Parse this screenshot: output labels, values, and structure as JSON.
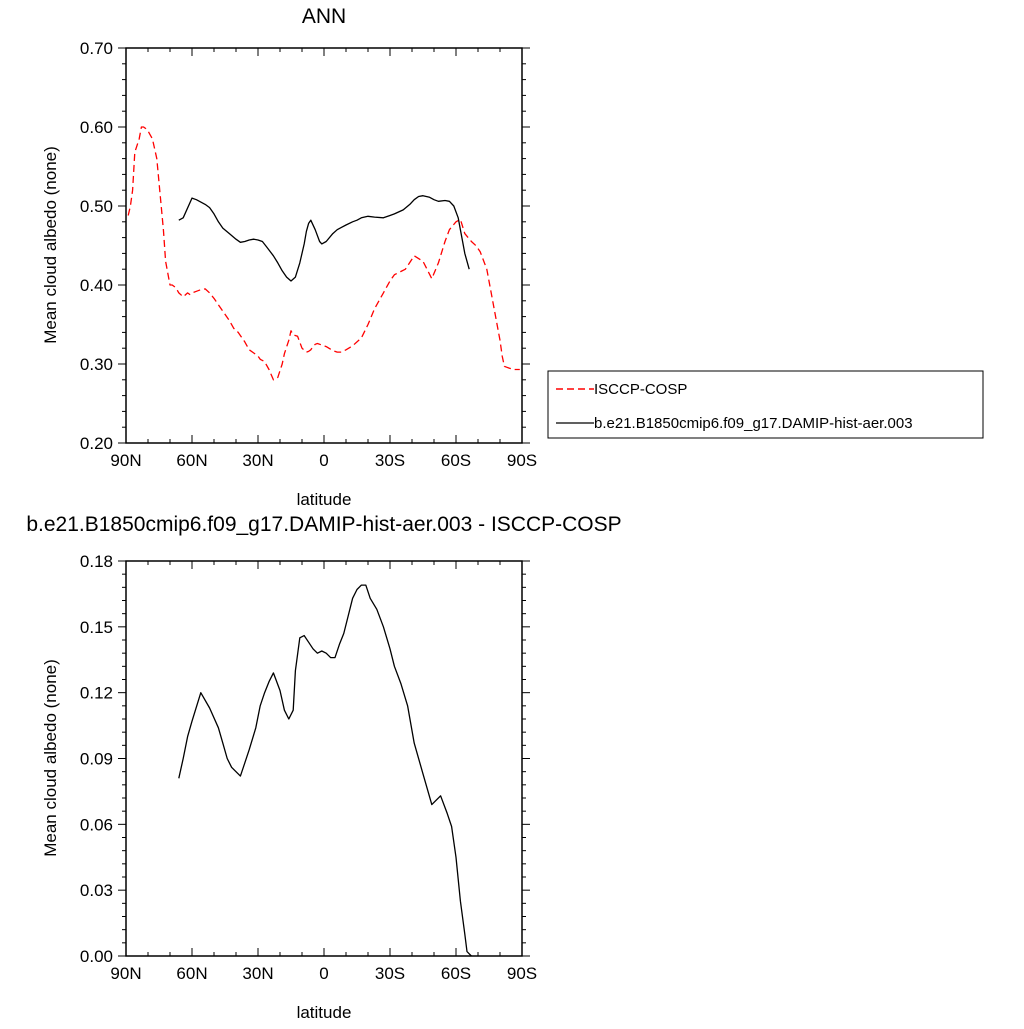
{
  "chart_data": [
    {
      "type": "line",
      "title": "ANN",
      "xlabel": "latitude",
      "ylabel": "Mean cloud albedo (none)",
      "xlim": [
        90,
        -90
      ],
      "ylim": [
        0.2,
        0.7
      ],
      "x_ticks": [
        90,
        60,
        30,
        0,
        -30,
        -60,
        -90
      ],
      "x_tick_labels": [
        "90N",
        "60N",
        "30N",
        "0",
        "30S",
        "60S",
        "90S"
      ],
      "y_ticks": [
        0.2,
        0.3,
        0.4,
        0.5,
        0.6,
        0.7
      ],
      "y_tick_labels": [
        "0.20",
        "0.30",
        "0.40",
        "0.50",
        "0.60",
        "0.70"
      ],
      "legend_position": "right",
      "series": [
        {
          "name": "ISCCP-COSP",
          "color": "#ff0000",
          "dashed": true,
          "x": [
            89,
            88,
            87,
            86,
            84,
            83,
            82,
            81,
            80,
            79,
            78,
            76,
            75,
            74,
            73,
            72,
            70,
            69,
            68,
            67,
            66,
            64,
            62,
            61,
            60,
            58,
            56,
            54,
            52,
            50,
            48,
            46,
            43,
            41,
            39,
            38,
            36,
            34,
            32,
            30,
            29,
            27,
            25,
            23,
            21,
            19,
            18,
            16,
            15,
            14,
            12,
            10,
            8,
            7,
            6,
            5,
            4,
            3,
            1,
            -1,
            -4,
            -6,
            -8,
            -10,
            -13,
            -17,
            -20,
            -23,
            -27,
            -30,
            -32,
            -37,
            -41,
            -45,
            -49,
            -52,
            -55,
            -57,
            -60,
            -62,
            -64,
            -67,
            -69,
            -71,
            -74,
            -76,
            -78,
            -80,
            -81,
            -82,
            -83,
            -84,
            -85,
            -86,
            -87,
            -88,
            -89
          ],
          "values": [
            0.488,
            0.5,
            0.52,
            0.568,
            0.585,
            0.6,
            0.6,
            0.598,
            0.595,
            0.59,
            0.585,
            0.56,
            0.53,
            0.5,
            0.47,
            0.43,
            0.4,
            0.4,
            0.398,
            0.395,
            0.39,
            0.385,
            0.39,
            0.388,
            0.39,
            0.392,
            0.394,
            0.395,
            0.39,
            0.383,
            0.375,
            0.367,
            0.355,
            0.345,
            0.34,
            0.336,
            0.328,
            0.318,
            0.314,
            0.31,
            0.306,
            0.303,
            0.293,
            0.28,
            0.283,
            0.3,
            0.313,
            0.33,
            0.342,
            0.337,
            0.335,
            0.32,
            0.315,
            0.316,
            0.318,
            0.322,
            0.325,
            0.326,
            0.324,
            0.322,
            0.317,
            0.315,
            0.315,
            0.318,
            0.323,
            0.333,
            0.35,
            0.37,
            0.39,
            0.405,
            0.413,
            0.42,
            0.437,
            0.43,
            0.408,
            0.428,
            0.455,
            0.47,
            0.48,
            0.483,
            0.465,
            0.455,
            0.45,
            0.442,
            0.42,
            0.39,
            0.36,
            0.33,
            0.31,
            0.297,
            0.296,
            0.295,
            0.294,
            0.293,
            0.293,
            0.293,
            0.293
          ]
        },
        {
          "name": "b.e21.B1850cmip6.f09_g17.DAMIP-hist-aer.003",
          "color": "#000000",
          "dashed": false,
          "x": [
            66,
            64,
            60,
            58,
            54,
            52,
            50,
            48,
            46,
            43,
            40,
            38,
            36,
            34,
            32,
            30,
            28,
            26,
            23,
            21,
            19,
            17,
            15,
            13,
            11,
            9,
            8,
            7,
            6,
            4,
            2,
            1,
            -1,
            -4,
            -6,
            -8,
            -10,
            -13,
            -15,
            -17,
            -20,
            -23,
            -27,
            -30,
            -32,
            -36,
            -39,
            -41,
            -43,
            -45,
            -48,
            -50,
            -52,
            -55,
            -57,
            -59,
            -61,
            -62,
            -63,
            -64,
            -65,
            -66
          ],
          "values": [
            0.482,
            0.485,
            0.51,
            0.508,
            0.502,
            0.498,
            0.49,
            0.48,
            0.472,
            0.465,
            0.458,
            0.454,
            0.455,
            0.457,
            0.458,
            0.457,
            0.455,
            0.448,
            0.437,
            0.428,
            0.418,
            0.41,
            0.405,
            0.41,
            0.428,
            0.452,
            0.468,
            0.478,
            0.482,
            0.47,
            0.455,
            0.452,
            0.455,
            0.465,
            0.47,
            0.473,
            0.476,
            0.48,
            0.482,
            0.485,
            0.487,
            0.486,
            0.485,
            0.488,
            0.49,
            0.495,
            0.502,
            0.508,
            0.512,
            0.513,
            0.511,
            0.508,
            0.506,
            0.507,
            0.506,
            0.5,
            0.485,
            0.47,
            0.455,
            0.44,
            0.43,
            0.42
          ]
        }
      ]
    },
    {
      "type": "line",
      "title": "b.e21.B1850cmip6.f09_g17.DAMIP-hist-aer.003 - ISCCP-COSP",
      "xlabel": "latitude",
      "ylabel": "Mean cloud albedo (none)",
      "xlim": [
        90,
        -90
      ],
      "ylim": [
        0.0,
        0.18
      ],
      "x_ticks": [
        90,
        60,
        30,
        0,
        -30,
        -60,
        -90
      ],
      "x_tick_labels": [
        "90N",
        "60N",
        "30N",
        "0",
        "30S",
        "60S",
        "90S"
      ],
      "y_ticks": [
        0.0,
        0.03,
        0.06,
        0.09,
        0.12,
        0.15,
        0.18
      ],
      "y_tick_labels": [
        "0.00",
        "0.03",
        "0.06",
        "0.09",
        "0.12",
        "0.15",
        "0.18"
      ],
      "series": [
        {
          "color": "#000000",
          "dashed": false,
          "x": [
            66,
            64,
            62,
            60,
            56,
            52,
            48,
            46,
            44,
            42,
            38,
            36,
            34,
            31,
            29,
            27,
            25,
            23,
            20,
            18,
            16,
            14,
            13,
            11,
            9,
            7,
            5,
            3,
            1,
            -1,
            -3,
            -5,
            -7,
            -9,
            -11,
            -13,
            -15,
            -17,
            -19,
            -21,
            -24,
            -27,
            -30,
            -32,
            -35,
            -38,
            -41,
            -45,
            -49,
            -53,
            -56,
            -58,
            -60,
            -62,
            -64,
            -65,
            -66,
            -67
          ],
          "values": [
            0.081,
            0.09,
            0.1,
            0.107,
            0.12,
            0.113,
            0.104,
            0.097,
            0.09,
            0.086,
            0.082,
            0.088,
            0.094,
            0.104,
            0.114,
            0.12,
            0.125,
            0.129,
            0.121,
            0.112,
            0.108,
            0.112,
            0.13,
            0.145,
            0.146,
            0.143,
            0.14,
            0.138,
            0.139,
            0.138,
            0.136,
            0.136,
            0.142,
            0.147,
            0.155,
            0.163,
            0.167,
            0.169,
            0.169,
            0.163,
            0.158,
            0.15,
            0.14,
            0.132,
            0.124,
            0.114,
            0.097,
            0.083,
            0.069,
            0.073,
            0.065,
            0.059,
            0.045,
            0.025,
            0.01,
            0.002,
            0.001,
            0.0
          ]
        }
      ]
    }
  ]
}
